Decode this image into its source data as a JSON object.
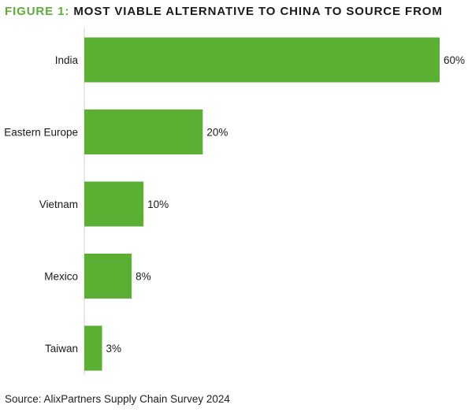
{
  "header": {
    "figure_label": "FIGURE 1:",
    "title": "MOST VIABLE ALTERNATIVE TO CHINA TO SOURCE FROM"
  },
  "footer": {
    "source": "Source: AlixPartners Supply Chain Survey 2024"
  },
  "colors": {
    "bar": "#5bb033",
    "accent": "#5bb033",
    "axis": "#e2e2e2",
    "text": "#1a1a1a"
  },
  "chart_data": {
    "type": "bar",
    "orientation": "horizontal",
    "categories": [
      "India",
      "Eastern Europe",
      "Vietnam",
      "Mexico",
      "Taiwan"
    ],
    "values": [
      60,
      20,
      10,
      8,
      3
    ],
    "data_labels": [
      "60%",
      "20%",
      "10%",
      "8%",
      "3%"
    ],
    "unit": "%",
    "xlim": [
      0,
      60
    ],
    "grid": false,
    "legend": "none"
  }
}
